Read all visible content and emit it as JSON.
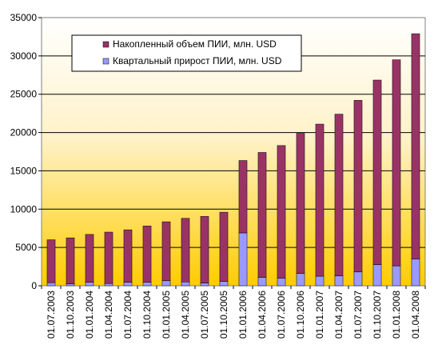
{
  "chart_data": {
    "type": "bar",
    "stacked": true,
    "title": "",
    "xlabel": "",
    "ylabel": "",
    "ylim": [
      0,
      35000
    ],
    "yticks": [
      0,
      5000,
      10000,
      15000,
      20000,
      25000,
      30000,
      35000
    ],
    "grid": true,
    "legend_position": "top-left",
    "categories": [
      "01.07.2003",
      "01.10.2003",
      "01.01.2004",
      "01.04.2004",
      "01.07.2004",
      "01.10.2004",
      "01.01.2005",
      "01.04.2005",
      "01.07.2005",
      "01.10.2005",
      "01.01.2006",
      "01.04.2006",
      "01.07.2006",
      "01.10.2006",
      "01.01.2007",
      "01.04.2007",
      "01.07.2007",
      "01.10.2007",
      "01.01.2008",
      "01.04.2008"
    ],
    "series": [
      {
        "name": "Квартальный прирост ПИИ, млн. USD",
        "color": "#9999FF",
        "values": [
          400,
          250,
          450,
          300,
          450,
          450,
          650,
          500,
          350,
          550,
          6900,
          1100,
          1000,
          1600,
          1250,
          1300,
          1800,
          2750,
          2600,
          3500
        ]
      },
      {
        "name": "Накопленный объем ПИИ, млн. USD",
        "color": "#993366",
        "values": [
          5600,
          6000,
          6250,
          6700,
          6850,
          7350,
          7700,
          8300,
          8700,
          9050,
          9450,
          16300,
          17300,
          18300,
          19850,
          21100,
          22400,
          24100,
          26900,
          29400
        ]
      }
    ]
  },
  "legend": {
    "items": [
      {
        "label": "Накопленный объем ПИИ, млн. USD",
        "color": "#993366"
      },
      {
        "label": "Квартальный прирост ПИИ, млн. USD",
        "color": "#9999FF"
      }
    ]
  }
}
